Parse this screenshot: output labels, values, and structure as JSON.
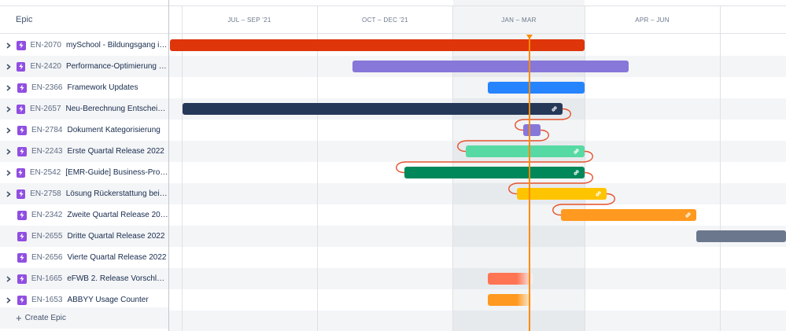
{
  "header": {
    "epic_column_label": "Epic"
  },
  "timeline": {
    "months": [
      "JUL – SEP '21",
      "OCT – DEC '21",
      "JAN – MAR",
      "APR – JUN"
    ]
  },
  "epics": [
    {
      "key": "EN-2070",
      "summary": "mySchool - Bildungsgang in P...",
      "has_children": true,
      "bar_color": "#de350b",
      "linked": false
    },
    {
      "key": "EN-2420",
      "summary": "Performance-Optimierung Pal...",
      "has_children": true,
      "bar_color": "#8777d9",
      "linked": false
    },
    {
      "key": "EN-2366",
      "summary": "Framework Updates",
      "has_children": true,
      "bar_color": "#2684ff",
      "linked": false
    },
    {
      "key": "EN-2657",
      "summary": "Neu-Berechnung Entscheid na...",
      "has_children": true,
      "bar_color": "#253858",
      "linked": true
    },
    {
      "key": "EN-2784",
      "summary": "Dokument Kategorisierung",
      "has_children": true,
      "bar_color": "#8777d9",
      "linked": false
    },
    {
      "key": "EN-2243",
      "summary": "Erste Quartal Release 2022",
      "has_children": true,
      "bar_color": "#57d9a3",
      "linked": true
    },
    {
      "key": "EN-2542",
      "summary": "[EMR-Guide] Business-Profil m...",
      "has_children": true,
      "bar_color": "#00875a",
      "linked": true
    },
    {
      "key": "EN-2758",
      "summary": "Lösung Rückerstattung bei Do...",
      "has_children": true,
      "bar_color": "#ffc400",
      "linked": true
    },
    {
      "key": "EN-2342",
      "summary": "Zweite Quartal Release 2022",
      "has_children": false,
      "bar_color": "#ff991f",
      "linked": true
    },
    {
      "key": "EN-2655",
      "summary": "Dritte Quartal Release 2022",
      "has_children": false,
      "bar_color": "#6b778c",
      "linked": false
    },
    {
      "key": "EN-2656",
      "summary": "Vierte Quartal Release 2022",
      "has_children": false,
      "bar_color": null,
      "linked": false
    },
    {
      "key": "EN-1665",
      "summary": "eFWB 2. Release Vorschläge",
      "has_children": true,
      "bar_color": "#ff7452",
      "linked": false
    },
    {
      "key": "EN-1653",
      "summary": "ABBYY Usage Counter",
      "has_children": true,
      "bar_color": "#ff991f",
      "linked": false
    }
  ],
  "create_epic_label": "Create Epic",
  "colors": {
    "today": "#ff8b00",
    "dependency": "#e5532d",
    "epic_icon": "#904ee2"
  }
}
